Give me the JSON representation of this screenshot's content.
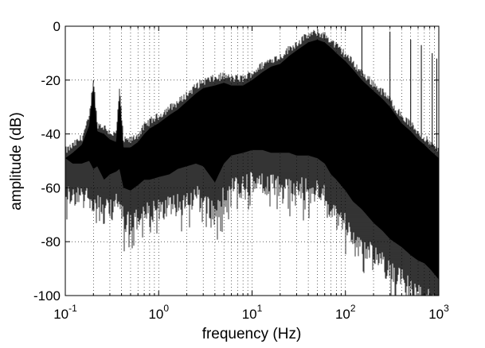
{
  "chart_data": {
    "type": "line",
    "title": "",
    "xlabel": "frequency (Hz)",
    "ylabel": "amplitude (dB)",
    "x_scale": "log",
    "xlim": [
      0.1,
      1000
    ],
    "ylim": [
      -100,
      0
    ],
    "grid": "dotted-major-and-minor",
    "x_ticks": [
      {
        "base": "10",
        "exp": "-1",
        "value": 0.1
      },
      {
        "base": "10",
        "exp": "0",
        "value": 1
      },
      {
        "base": "10",
        "exp": "1",
        "value": 10
      },
      {
        "base": "10",
        "exp": "2",
        "value": 100
      },
      {
        "base": "10",
        "exp": "3",
        "value": 1000
      }
    ],
    "y_ticks": [
      {
        "label": "0",
        "value": 0
      },
      {
        "label": "-20",
        "value": -20
      },
      {
        "label": "-40",
        "value": -40
      },
      {
        "label": "-60",
        "value": -60
      },
      {
        "label": "-80",
        "value": -80
      },
      {
        "label": "-100",
        "value": -100
      }
    ],
    "series": [
      {
        "color": "#000000",
        "representation": "dense spectrum; upper and lower envelope (dB)",
        "x": [
          0.1,
          0.12,
          0.15,
          0.18,
          0.2,
          0.22,
          0.26,
          0.3,
          0.35,
          0.38,
          0.42,
          0.5,
          0.6,
          0.7,
          0.8,
          1.0,
          1.3,
          1.6,
          2.0,
          2.5,
          3.0,
          4.0,
          5.0,
          6.0,
          8.0,
          10,
          13,
          16,
          20,
          25,
          30,
          40,
          50,
          60,
          70,
          80,
          100,
          120,
          150,
          200,
          250,
          300,
          400,
          500,
          600,
          700,
          800,
          1000
        ],
        "upper": [
          -47,
          -45,
          -42,
          -35,
          -20,
          -37,
          -38,
          -40,
          -41,
          -24,
          -43,
          -43,
          -41,
          -38,
          -36,
          -34,
          -31,
          -29,
          -26,
          -23,
          -21,
          -20,
          -19,
          -20,
          -20,
          -18,
          -15,
          -13,
          -12,
          -9,
          -7,
          -4,
          -3,
          -4,
          -6,
          -8,
          -11,
          -14,
          -18,
          -22,
          -25,
          -28,
          -34,
          -37,
          -40,
          -42,
          -44,
          -47
        ],
        "lower": [
          -54,
          -56,
          -56,
          -55,
          -58,
          -57,
          -62,
          -60,
          -59,
          -58,
          -65,
          -66,
          -64,
          -62,
          -62,
          -61,
          -60,
          -58,
          -57,
          -56,
          -57,
          -63,
          -56,
          -53,
          -52,
          -51,
          -51,
          -52,
          -52,
          -52,
          -53,
          -53,
          -54,
          -56,
          -60,
          -62,
          -66,
          -70,
          -73,
          -78,
          -81,
          -84,
          -87,
          -90,
          -92,
          -93,
          -95,
          -99
        ]
      }
    ],
    "spikes": [
      {
        "x": 0.2,
        "y": -21
      },
      {
        "x": 0.38,
        "y": -24
      },
      {
        "x": 150,
        "y": 0
      },
      {
        "x": 300,
        "y": -2
      },
      {
        "x": 500,
        "y": -5
      },
      {
        "x": 650,
        "y": -7
      },
      {
        "x": 850,
        "y": -10
      },
      {
        "x": 950,
        "y": -12
      }
    ]
  }
}
